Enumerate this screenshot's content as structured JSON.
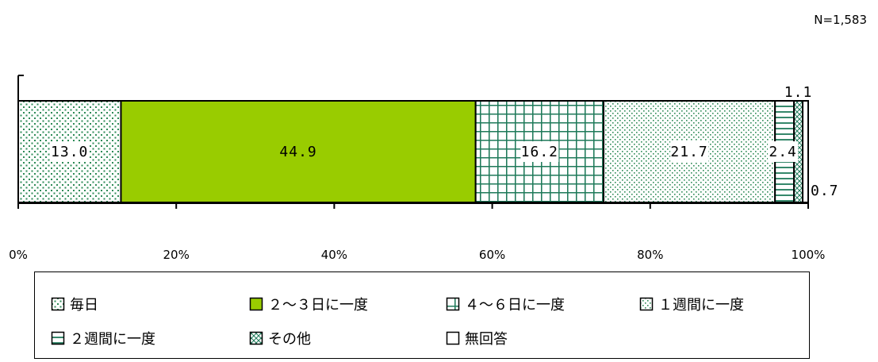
{
  "sample_note": "N=1,583",
  "chart_data": {
    "type": "bar",
    "orientation": "horizontal-stacked-100",
    "xlim": [
      0,
      100
    ],
    "x_ticks": [
      "0%",
      "20%",
      "40%",
      "60%",
      "80%",
      "100%"
    ],
    "series": [
      {
        "name": "毎日",
        "value": 13.0,
        "label": "13.0",
        "pattern": "dots-sparse",
        "color": "#2e8b57"
      },
      {
        "name": "２～３日に一度",
        "value": 44.9,
        "label": "44.9",
        "pattern": "solid",
        "color": "#99cc00"
      },
      {
        "name": "４～６日に一度",
        "value": 16.2,
        "label": "16.2",
        "pattern": "grid",
        "color": "#1f7a5a"
      },
      {
        "name": "１週間に一度",
        "value": 21.7,
        "label": "21.7",
        "pattern": "dots-diagonal",
        "color": "#2e8b57"
      },
      {
        "name": "２週間に一度",
        "value": 2.4,
        "label": "2.4",
        "pattern": "horizontal-lines",
        "color": "#1f7a5a"
      },
      {
        "name": "その他",
        "value": 1.1,
        "label": "1.1",
        "pattern": "crosshatch-diagonal",
        "color": "#1f7a5a"
      },
      {
        "name": "無回答",
        "value": 0.7,
        "label": "0.7",
        "pattern": "none",
        "color": "#ffffff"
      }
    ]
  }
}
